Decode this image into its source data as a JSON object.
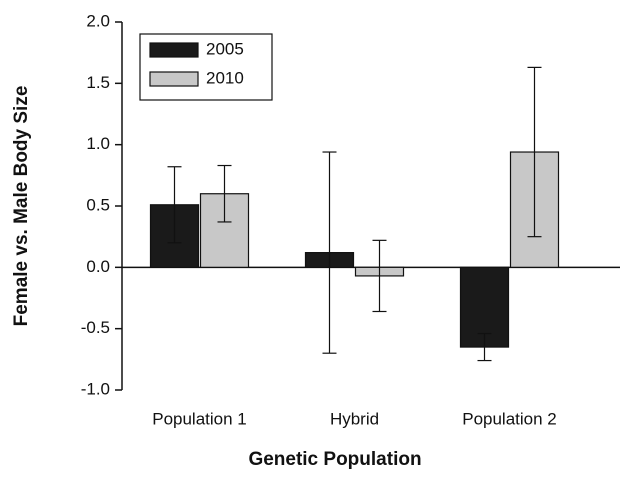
{
  "chart_data": {
    "type": "bar",
    "x_label": "Genetic Population",
    "y_label": "Female vs. Male Body Size",
    "categories": [
      "Population 1",
      "Hybrid",
      "Population 2"
    ],
    "series": [
      {
        "name": "2005",
        "color": "#1a1a1a",
        "values": [
          0.51,
          0.12,
          -0.65
        ],
        "errors": [
          0.31,
          0.82,
          0.11
        ]
      },
      {
        "name": "2010",
        "color": "#c8c8c8",
        "values": [
          0.6,
          -0.07,
          0.94
        ],
        "errors": [
          0.23,
          0.29,
          0.69
        ]
      }
    ],
    "ylim": [
      -1.0,
      2.0
    ],
    "yticks": [
      {
        "value": -1.0,
        "label": "-1.0"
      },
      -0.5,
      {
        "value": 0,
        "label": "0.0"
      },
      0.5,
      {
        "value": 1.0,
        "label": "1.0"
      },
      1.5,
      {
        "value": 2.0,
        "label": "2.0"
      }
    ],
    "legend": "upper left"
  }
}
